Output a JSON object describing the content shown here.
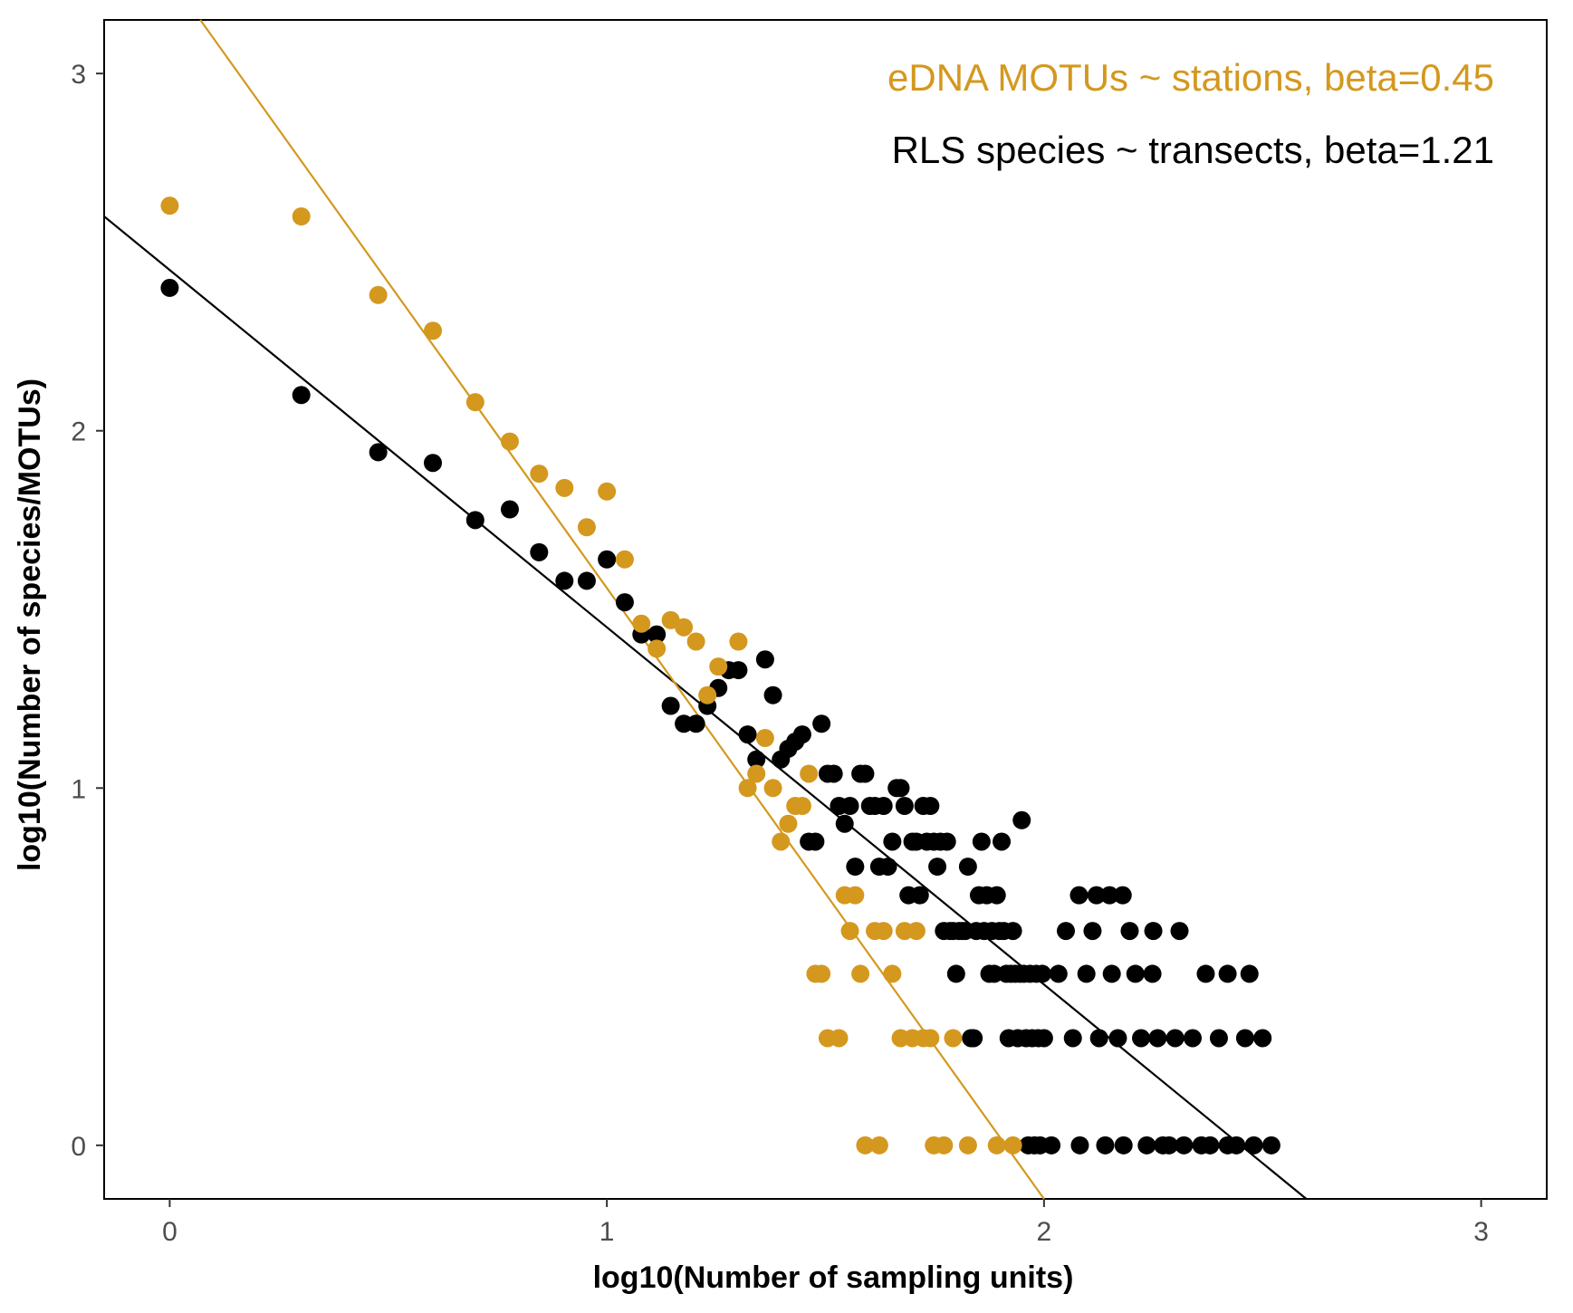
{
  "chart_data": {
    "type": "scatter",
    "title": "",
    "xlabel": "log10(Number of sampling units)",
    "ylabel": "log10(Number of species/MOTUs)",
    "xlim": [
      -0.15,
      3.15
    ],
    "ylim": [
      -0.15,
      3.15
    ],
    "x_ticks": [
      0,
      1,
      2,
      3
    ],
    "y_ticks": [
      0,
      1,
      2,
      3
    ],
    "grid": false,
    "colors": {
      "edna": "#D4981E",
      "rls": "#000000"
    },
    "annotations": [
      {
        "text": "eDNA MOTUs ~ stations, beta=0.45",
        "color": "#D4981E",
        "position": "top-right"
      },
      {
        "text": "RLS species ~ transects, beta=1.21",
        "color": "#000000",
        "position": "top-right"
      }
    ],
    "lines": [
      {
        "series": "RLS",
        "color": "#000000",
        "x": [
          -0.15,
          2.6
        ],
        "y": [
          2.6,
          -0.15
        ]
      },
      {
        "series": "eDNA",
        "color": "#D4981E",
        "x": [
          0.07,
          2.0
        ],
        "y": [
          3.15,
          -0.15
        ]
      }
    ],
    "series": [
      {
        "name": "",
        "id": "RLS",
        "color": "#000000",
        "points": [
          [
            0,
            2.4
          ],
          [
            0.301,
            2.1
          ],
          [
            0.477,
            1.94
          ],
          [
            0.602,
            1.91
          ],
          [
            0.699,
            1.75
          ],
          [
            0.778,
            1.78
          ],
          [
            0.845,
            1.66
          ],
          [
            0.903,
            1.58
          ],
          [
            0.954,
            1.58
          ],
          [
            1.0,
            1.64
          ],
          [
            1.041,
            1.52
          ],
          [
            1.079,
            1.43
          ],
          [
            1.114,
            1.43
          ],
          [
            1.146,
            1.23
          ],
          [
            1.176,
            1.18
          ],
          [
            1.204,
            1.18
          ],
          [
            1.23,
            1.23
          ],
          [
            1.255,
            1.28
          ],
          [
            1.279,
            1.33
          ],
          [
            1.301,
            1.33
          ],
          [
            1.322,
            1.15
          ],
          [
            1.342,
            1.08
          ],
          [
            1.362,
            1.36
          ],
          [
            1.38,
            1.26
          ],
          [
            1.398,
            1.08
          ],
          [
            1.415,
            1.11
          ],
          [
            1.431,
            1.13
          ],
          [
            1.447,
            1.15
          ],
          [
            1.462,
            0.85
          ],
          [
            1.477,
            0.85
          ],
          [
            1.491,
            1.18
          ],
          [
            1.505,
            1.04
          ],
          [
            1.519,
            1.04
          ],
          [
            1.531,
            0.95
          ],
          [
            1.544,
            0.9
          ],
          [
            1.556,
            0.95
          ],
          [
            1.568,
            0.78
          ],
          [
            1.58,
            1.04
          ],
          [
            1.591,
            1.04
          ],
          [
            1.602,
            0.95
          ],
          [
            1.613,
            0.95
          ],
          [
            1.623,
            0.78
          ],
          [
            1.633,
            0.95
          ],
          [
            1.643,
            0.78
          ],
          [
            1.653,
            0.85
          ],
          [
            1.663,
            1.0
          ],
          [
            1.672,
            1.0
          ],
          [
            1.681,
            0.95
          ],
          [
            1.69,
            0.7
          ],
          [
            1.699,
            0.85
          ],
          [
            1.708,
            0.85
          ],
          [
            1.716,
            0.7
          ],
          [
            1.724,
            0.95
          ],
          [
            1.732,
            0.85
          ],
          [
            1.74,
            0.95
          ],
          [
            1.748,
            0.85
          ],
          [
            1.756,
            0.78
          ],
          [
            1.763,
            0.85
          ],
          [
            1.771,
            0.6
          ],
          [
            1.778,
            0.85
          ],
          [
            1.785,
            0.6
          ],
          [
            1.792,
            0.6
          ],
          [
            1.799,
            0.48
          ],
          [
            1.806,
            0.6
          ],
          [
            1.813,
            0.6
          ],
          [
            1.82,
            0.6
          ],
          [
            1.826,
            0.78
          ],
          [
            1.833,
            0.3
          ],
          [
            1.839,
            0.3
          ],
          [
            1.845,
            0.6
          ],
          [
            1.851,
            0.7
          ],
          [
            1.857,
            0.85
          ],
          [
            1.863,
            0.6
          ],
          [
            1.869,
            0.7
          ],
          [
            1.875,
            0.48
          ],
          [
            1.881,
            0.6
          ],
          [
            1.886,
            0.48
          ],
          [
            1.892,
            0.7
          ],
          [
            1.898,
            0.6
          ],
          [
            1.903,
            0.85
          ],
          [
            1.908,
            0.6
          ],
          [
            1.914,
            0.48
          ],
          [
            1.919,
            0.3
          ],
          [
            1.924,
            0.48
          ],
          [
            1.929,
            0.6
          ],
          [
            1.934,
            0.48
          ],
          [
            1.94,
            0.3
          ],
          [
            1.945,
            0.48
          ],
          [
            1.949,
            0.91
          ],
          [
            1.954,
            0.48
          ],
          [
            1.959,
            0.3
          ],
          [
            1.964,
            0.0
          ],
          [
            1.968,
            0.48
          ],
          [
            1.973,
            0.3
          ],
          [
            1.978,
            0.0
          ],
          [
            1.982,
            0.48
          ],
          [
            1.987,
            0.3
          ],
          [
            1.991,
            0.0
          ],
          [
            1.996,
            0.48
          ],
          [
            2.0,
            0.3
          ],
          [
            2.017,
            0.0
          ],
          [
            2.033,
            0.48
          ],
          [
            2.05,
            0.6
          ],
          [
            2.066,
            0.3
          ],
          [
            2.082,
            0.0
          ],
          [
            2.097,
            0.48
          ],
          [
            2.111,
            0.6
          ],
          [
            2.126,
            0.3
          ],
          [
            2.14,
            0.0
          ],
          [
            2.155,
            0.48
          ],
          [
            2.169,
            0.3
          ],
          [
            2.182,
            0.0
          ],
          [
            2.196,
            0.6
          ],
          [
            2.209,
            0.48
          ],
          [
            2.222,
            0.3
          ],
          [
            2.235,
            0.0
          ],
          [
            2.248,
            0.48
          ],
          [
            2.26,
            0.3
          ],
          [
            2.272,
            0.0
          ],
          [
            2.286,
            0.0
          ],
          [
            2.3,
            0.3
          ],
          [
            2.32,
            0.0
          ],
          [
            2.34,
            0.3
          ],
          [
            2.36,
            0.0
          ],
          [
            2.38,
            0.0
          ],
          [
            2.4,
            0.3
          ],
          [
            2.42,
            0.0
          ],
          [
            2.44,
            0.0
          ],
          [
            2.46,
            0.3
          ],
          [
            2.48,
            0.0
          ],
          [
            2.5,
            0.3
          ],
          [
            2.52,
            0.0
          ],
          [
            2.08,
            0.7
          ],
          [
            2.12,
            0.7
          ],
          [
            2.15,
            0.7
          ],
          [
            2.18,
            0.7
          ],
          [
            2.25,
            0.6
          ],
          [
            2.31,
            0.6
          ],
          [
            2.37,
            0.48
          ],
          [
            2.42,
            0.48
          ],
          [
            2.47,
            0.48
          ]
        ]
      },
      {
        "name": "",
        "id": "eDNA",
        "color": "#D4981E",
        "points": [
          [
            0,
            2.63
          ],
          [
            0.301,
            2.6
          ],
          [
            0.477,
            2.38
          ],
          [
            0.602,
            2.28
          ],
          [
            0.699,
            2.08
          ],
          [
            0.778,
            1.97
          ],
          [
            0.845,
            1.88
          ],
          [
            0.903,
            1.84
          ],
          [
            0.954,
            1.73
          ],
          [
            1.0,
            1.83
          ],
          [
            1.041,
            1.64
          ],
          [
            1.079,
            1.46
          ],
          [
            1.114,
            1.39
          ],
          [
            1.146,
            1.47
          ],
          [
            1.176,
            1.45
          ],
          [
            1.204,
            1.41
          ],
          [
            1.23,
            1.26
          ],
          [
            1.255,
            1.34
          ],
          [
            1.301,
            1.41
          ],
          [
            1.322,
            1.0
          ],
          [
            1.342,
            1.04
          ],
          [
            1.362,
            1.14
          ],
          [
            1.38,
            1.0
          ],
          [
            1.398,
            0.85
          ],
          [
            1.415,
            0.9
          ],
          [
            1.431,
            0.95
          ],
          [
            1.447,
            0.95
          ],
          [
            1.462,
            1.04
          ],
          [
            1.477,
            0.48
          ],
          [
            1.491,
            0.48
          ],
          [
            1.505,
            0.3
          ],
          [
            1.531,
            0.3
          ],
          [
            1.544,
            0.7
          ],
          [
            1.556,
            0.6
          ],
          [
            1.568,
            0.7
          ],
          [
            1.58,
            0.48
          ],
          [
            1.591,
            0.0
          ],
          [
            1.613,
            0.6
          ],
          [
            1.623,
            0.0
          ],
          [
            1.633,
            0.6
          ],
          [
            1.653,
            0.48
          ],
          [
            1.672,
            0.3
          ],
          [
            1.681,
            0.6
          ],
          [
            1.699,
            0.3
          ],
          [
            1.708,
            0.6
          ],
          [
            1.724,
            0.3
          ],
          [
            1.74,
            0.3
          ],
          [
            1.748,
            0.0
          ],
          [
            1.771,
            0.0
          ],
          [
            1.792,
            0.3
          ],
          [
            1.826,
            0.0
          ],
          [
            1.892,
            0.0
          ],
          [
            1.929,
            0.0
          ]
        ]
      }
    ]
  }
}
